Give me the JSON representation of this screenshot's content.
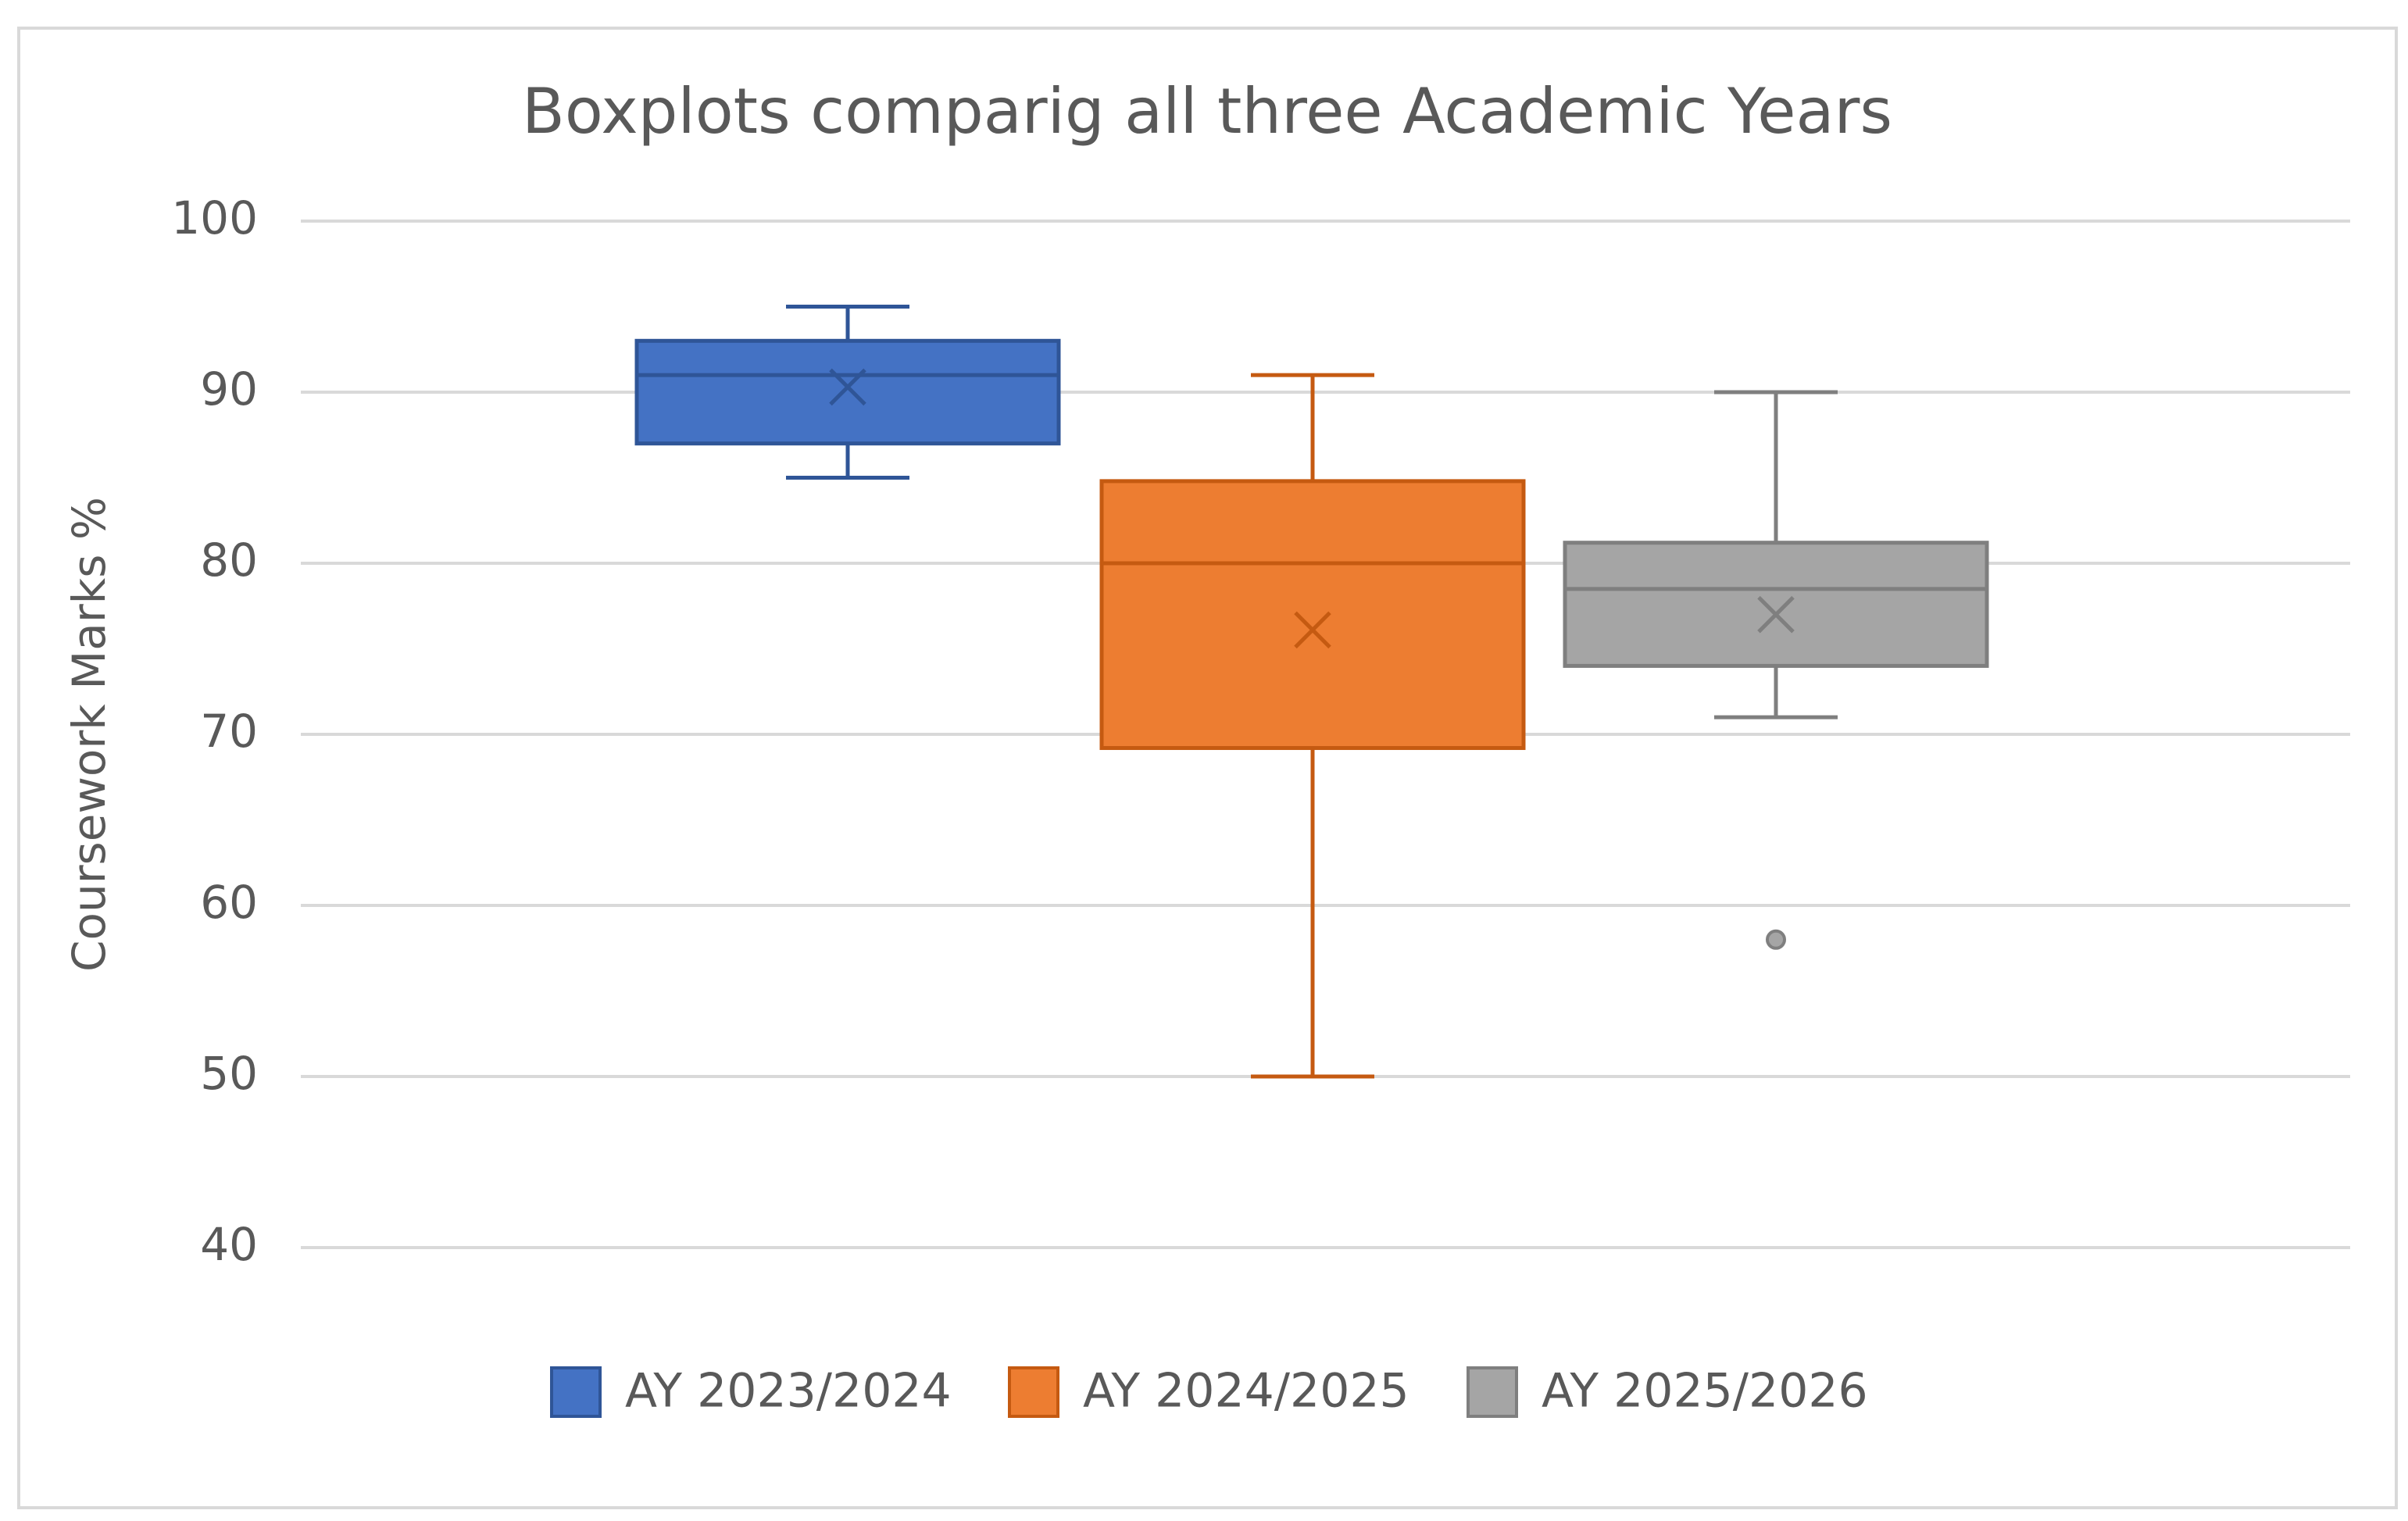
{
  "chart_data": {
    "type": "boxplot",
    "title": "Boxplots comparig all three Academic Years",
    "y_label": "Coursework Marks %",
    "ylim": [
      40,
      100
    ],
    "yticks": [
      40,
      50,
      60,
      70,
      80,
      90,
      100
    ],
    "grid": true,
    "legend": "bottom",
    "series": [
      {
        "name": "AY 2023/2024",
        "color": "#4472c4",
        "edge_color": "#2f5597",
        "min": 85,
        "q1": 87,
        "median": 91,
        "q3": 93,
        "max": 95,
        "mean": 90.3,
        "outliers": []
      },
      {
        "name": "AY 2024/2025",
        "color": "#ed7d31",
        "edge_color": "#c55a11",
        "min": 50,
        "q1": 69.2,
        "median": 80,
        "q3": 84.8,
        "max": 91,
        "mean": 76.1,
        "outliers": []
      },
      {
        "name": "AY 2025/2026",
        "color": "#a5a5a5",
        "edge_color": "#7f7f7f",
        "min": 71,
        "q1": 74,
        "median": 78.5,
        "q3": 81.2,
        "max": 90,
        "mean": 77,
        "outliers": [
          58
        ]
      }
    ]
  }
}
